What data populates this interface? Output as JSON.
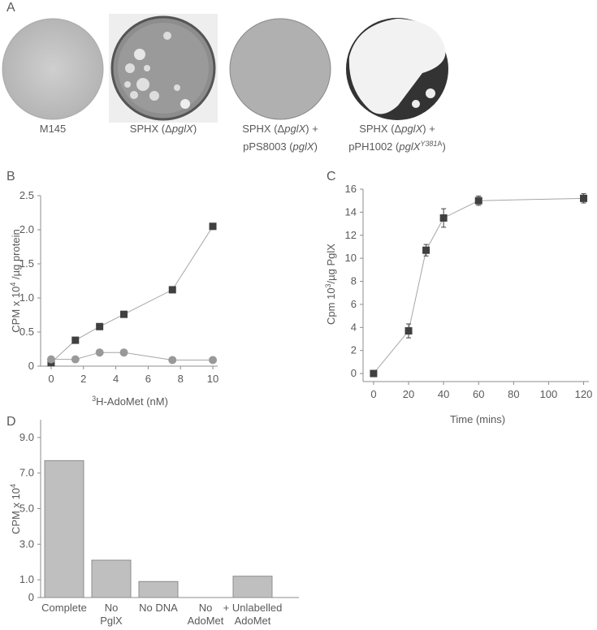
{
  "panel_labels": [
    "A",
    "B",
    "C",
    "D"
  ],
  "plates": [
    {
      "caption": [
        [
          {
            "text": "M145"
          }
        ]
      ]
    },
    {
      "caption": [
        [
          {
            "text": "SPHX (Δ"
          },
          {
            "text": "pglX",
            "style": "italic"
          },
          {
            "text": ")"
          }
        ]
      ]
    },
    {
      "caption": [
        [
          {
            "text": "SPHX (Δ"
          },
          {
            "text": "pglX",
            "style": "italic"
          },
          {
            "text": ") +"
          }
        ],
        [
          {
            "text": "pPS8003 ("
          },
          {
            "text": "pglX",
            "style": "italic"
          },
          {
            "text": ")"
          }
        ]
      ]
    },
    {
      "caption": [
        [
          {
            "text": "SPHX (Δ"
          },
          {
            "text": "pglX",
            "style": "italic"
          },
          {
            "text": ") +"
          }
        ],
        [
          {
            "text": "pPH1002 ("
          },
          {
            "text": "pglX",
            "style": "italic"
          },
          {
            "text": "Y381",
            "style": "sup-italic"
          },
          {
            "text": "A",
            "style": "sup"
          },
          {
            "text": ")"
          }
        ]
      ]
    }
  ],
  "chart_data": [
    {
      "type": "line",
      "xlabel": [
        {
          "text": "3",
          "style": "sup"
        },
        {
          "text": "H-AdoMet (nM)"
        }
      ],
      "ylabel": [
        {
          "text": "CPM x 10"
        },
        {
          "text": "4",
          "style": "sup"
        },
        {
          "text": " /µg protein"
        }
      ],
      "xlim": [
        -0.65,
        10.3
      ],
      "ylim": [
        0,
        2.5
      ],
      "xticks": [
        0,
        2,
        4,
        6,
        8,
        10
      ],
      "yticks": [
        0,
        0.5,
        {
          "value": 1,
          "label": "1.0"
        },
        1.5,
        {
          "value": 2,
          "label": "2.0"
        },
        2.5
      ],
      "x": [
        0,
        1.5,
        3,
        4.5,
        7.5,
        10
      ],
      "series": [
        {
          "color": "#404040",
          "marker": "square",
          "values": [
            0.05,
            0.38,
            0.58,
            0.76,
            1.12,
            2.05
          ]
        },
        {
          "color": "#999999",
          "marker": "circle",
          "values": [
            0.1,
            0.1,
            0.2,
            0.2,
            0.09,
            0.09
          ]
        }
      ]
    },
    {
      "type": "line",
      "xlabel": [
        {
          "text": "Time (mins)"
        }
      ],
      "ylabel": [
        {
          "text": "Cpm 10"
        },
        {
          "text": "3",
          "style": "sup"
        },
        {
          "text": "/µg PglX"
        }
      ],
      "xlim": [
        -6,
        123
      ],
      "ylim": [
        -0.7,
        16
      ],
      "xticks": [
        0,
        20,
        40,
        60,
        80,
        100,
        120
      ],
      "yticks": [
        0,
        2,
        4,
        6,
        8,
        10,
        12,
        14,
        16
      ],
      "x": [
        0,
        20,
        30,
        40,
        60,
        120
      ],
      "series": [
        {
          "color": "#404040",
          "marker": "square",
          "values": [
            0,
            3.7,
            10.7,
            13.5,
            15,
            15.2
          ],
          "errors": [
            0.2,
            0.6,
            0.5,
            0.8,
            0.4,
            0.4
          ]
        }
      ]
    },
    {
      "type": "bar",
      "ylabel": [
        {
          "text": "CPM x 10"
        },
        {
          "text": "4",
          "style": "sup"
        }
      ],
      "ylim": [
        0,
        10
      ],
      "yticks": [
        0,
        {
          "value": 1,
          "label": "1.0"
        },
        {
          "value": 3,
          "label": "3.0"
        },
        {
          "value": 5,
          "label": "5.0"
        },
        {
          "value": 7,
          "label": "7.0"
        },
        {
          "value": 9,
          "label": "9.0"
        }
      ],
      "categories": [
        [
          "Complete"
        ],
        [
          "No",
          "PglX"
        ],
        [
          "No DNA"
        ],
        [
          "No",
          "AdoMet"
        ],
        [
          "+ Unlabelled",
          "AdoMet"
        ]
      ],
      "color": "#bfbfbf",
      "values": [
        7.7,
        2.1,
        0.9,
        0,
        1.2
      ]
    }
  ]
}
